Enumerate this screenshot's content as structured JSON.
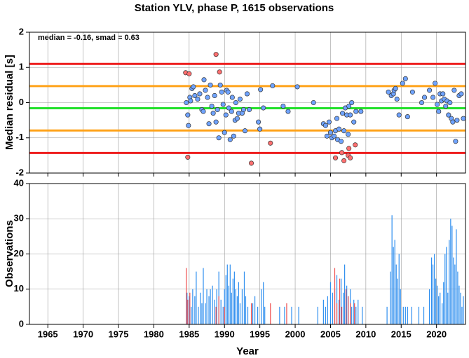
{
  "chart_data": [
    {
      "type": "scatter",
      "title": "Station YLV, phase P, 1615 observations",
      "ylabel": "Median residual [s]",
      "annotation": "median = -0.16, smad = 0.63",
      "xlim": [
        1962.4,
        2024.1
      ],
      "ylim": [
        -2,
        2
      ],
      "yticks": [
        -2,
        -1,
        0,
        1,
        2
      ],
      "grid": true,
      "hlines": [
        {
          "value": 1.1,
          "color": "#ee1c1c"
        },
        {
          "value": 0.47,
          "color": "#ffa31a"
        },
        {
          "value": -0.16,
          "color": "#22e02a"
        },
        {
          "value": -0.79,
          "color": "#ffa31a"
        },
        {
          "value": -1.43,
          "color": "#ee1c1c"
        }
      ],
      "series": [
        {
          "color": "#6fa3ff",
          "x": [
            1984.6,
            1984.8,
            1984.9,
            1985.1,
            1985.2,
            1985.4,
            1985.6,
            1985.8,
            1986.2,
            1986.5,
            1986.8,
            1987.0,
            1987.1,
            1987.3,
            1987.6,
            1987.8,
            1988.0,
            1988.2,
            1988.4,
            1988.6,
            1988.8,
            1989.0,
            1989.2,
            1989.4,
            1989.6,
            1989.8,
            1990.0,
            1990.2,
            1990.3,
            1990.5,
            1990.6,
            1990.8,
            1991.0,
            1991.1,
            1991.3,
            1991.5,
            1991.6,
            1991.8,
            1992.0,
            1992.2,
            1992.5,
            1992.7,
            1992.9,
            1993.2,
            1993.5,
            1994.8,
            1995.0,
            1995.1,
            1995.5,
            1996.8,
            1998.3,
            1999.0,
            2000.3,
            2002.6,
            2004.0,
            2004.3,
            2004.5,
            2004.8,
            2005.0,
            2005.2,
            2005.5,
            2005.7,
            2005.9,
            2006.0,
            2006.2,
            2006.5,
            2006.7,
            2006.9,
            2007.1,
            2007.3,
            2007.5,
            2007.6,
            2007.8,
            2008.0,
            2008.3,
            2008.6,
            2009.3,
            2013.2,
            2013.6,
            2013.9,
            2014.0,
            2014.2,
            2014.4,
            2014.7,
            2015.2,
            2015.6,
            2015.9,
            2016.6,
            2017.9,
            2018.3,
            2019.0,
            2019.5,
            2019.8,
            2020.1,
            2020.3,
            2020.5,
            2020.7,
            2020.9,
            2021.1,
            2021.3,
            2021.5,
            2021.7,
            2021.9,
            2022.1,
            2022.3,
            2022.5,
            2022.7,
            2022.9,
            2023.2,
            2023.5,
            2023.8
          ],
          "values": [
            0.0,
            -0.35,
            -0.65,
            0.15,
            0.05,
            0.4,
            0.45,
            0.2,
            0.1,
            0.25,
            -0.2,
            -0.25,
            0.65,
            0.35,
            0.15,
            -0.6,
            0.5,
            -0.1,
            -0.3,
            0.2,
            -0.55,
            -0.2,
            -1.0,
            0.5,
            0.3,
            -0.05,
            -0.85,
            -0.35,
            0.35,
            0.3,
            -0.15,
            -1.05,
            -0.25,
            0.15,
            -0.95,
            -0.5,
            0.0,
            -0.45,
            -0.3,
            0.1,
            -0.3,
            -0.2,
            -0.8,
            0.25,
            -0.2,
            -0.55,
            -0.75,
            0.37,
            -0.15,
            0.48,
            -0.1,
            -0.25,
            0.45,
            0.0,
            -0.6,
            -0.65,
            -0.95,
            -0.55,
            -0.85,
            -1.0,
            -0.95,
            -0.8,
            -0.45,
            -1.05,
            -0.75,
            -1.1,
            -0.3,
            -0.8,
            -0.15,
            -0.35,
            -0.9,
            -0.1,
            -0.35,
            0.0,
            -0.55,
            -0.25,
            -0.25,
            0.3,
            0.2,
            0.25,
            0.35,
            0.4,
            0.1,
            -0.35,
            0.55,
            0.68,
            -0.4,
            0.3,
            0.0,
            0.15,
            0.35,
            0.15,
            0.55,
            -0.05,
            -0.25,
            0.25,
            0.05,
            0.25,
            0.1,
            -0.1,
            0.05,
            -0.35,
            0.0,
            -0.45,
            -0.55,
            0.35,
            -1.1,
            -0.5,
            0.2,
            0.25,
            -0.45
          ]
        },
        {
          "color": "#ff6f6f",
          "x": [
            1984.5,
            1985.0,
            1984.8,
            1988.8,
            1989.3,
            1993.8,
            1996.5,
            2005.7,
            2006.6,
            2006.9,
            2007.5,
            2007.6,
            2007.8,
            2008.5
          ],
          "values": [
            0.85,
            0.82,
            -1.55,
            1.37,
            0.87,
            -1.72,
            -1.15,
            -1.57,
            -1.42,
            -1.65,
            -1.5,
            -1.3,
            -1.57,
            -1.2
          ]
        }
      ]
    },
    {
      "type": "bar",
      "xlabel": "Year",
      "ylabel": "Observations",
      "xlim": [
        1962.4,
        2024.1
      ],
      "ylim": [
        0,
        40
      ],
      "yticks": [
        0,
        10,
        20,
        30,
        40
      ],
      "xticks": [
        1965,
        1970,
        1975,
        1980,
        1985,
        1990,
        1995,
        2000,
        2005,
        2010,
        2015,
        2020
      ],
      "grid": true,
      "series": [
        {
          "color": "#2f8fef",
          "x": [
            1984.7,
            1985.0,
            1985.3,
            1985.5,
            1985.8,
            1986.0,
            1986.3,
            1986.6,
            1986.8,
            1987.0,
            1987.3,
            1987.5,
            1987.8,
            1988.0,
            1988.3,
            1988.6,
            1988.9,
            1989.2,
            1989.5,
            1989.8,
            1990.0,
            1990.2,
            1990.4,
            1990.6,
            1990.8,
            1991.0,
            1991.2,
            1991.4,
            1991.6,
            1991.8,
            1992.0,
            1992.2,
            1992.5,
            1992.8,
            1993.0,
            1993.3,
            1994.0,
            1994.3,
            1994.7,
            1995.2,
            1995.5,
            1995.7,
            1997.8,
            1998.5,
            1999.5,
            2000.5,
            2003.2,
            2004.0,
            2004.3,
            2004.6,
            2005.0,
            2005.3,
            2005.6,
            2005.9,
            2006.2,
            2006.5,
            2006.8,
            2007.0,
            2007.3,
            2007.5,
            2007.8,
            2008.0,
            2008.3,
            2008.6,
            2008.9,
            2009.5,
            2013.0,
            2013.5,
            2013.7,
            2013.9,
            2014.1,
            2014.3,
            2014.5,
            2014.7,
            2014.9,
            2015.3,
            2015.6,
            2015.9,
            2016.5,
            2017.5,
            2018.2,
            2019.0,
            2019.3,
            2019.5,
            2019.7,
            2019.9,
            2020.1,
            2020.3,
            2020.5,
            2020.8,
            2021.0,
            2021.2,
            2021.4,
            2021.6,
            2021.8,
            2022.0,
            2022.2,
            2022.4,
            2022.6,
            2022.8,
            2023.0,
            2023.2,
            2023.4,
            2023.6,
            2023.8
          ],
          "values": [
            9,
            8,
            5,
            10,
            8,
            15,
            5,
            9,
            6,
            16,
            6,
            10,
            8,
            10,
            11,
            7,
            10,
            15,
            7,
            5,
            10,
            14,
            17,
            11,
            17,
            9,
            13,
            15,
            10,
            8,
            12,
            6,
            10,
            15,
            8,
            5,
            6,
            8,
            5,
            10,
            12,
            5,
            5,
            5,
            5,
            5,
            5,
            7,
            5,
            8,
            12,
            9,
            10,
            14,
            7,
            13,
            9,
            17,
            11,
            8,
            10,
            5,
            7,
            5,
            7,
            5,
            5,
            15,
            31,
            22,
            24,
            17,
            13,
            20,
            10,
            5,
            5,
            5,
            5,
            5,
            5,
            10,
            19,
            17,
            20,
            13,
            11,
            8,
            9,
            6,
            12,
            20,
            22,
            9,
            24,
            30,
            28,
            19,
            17,
            27,
            15,
            11,
            9,
            5,
            8
          ]
        },
        {
          "color": "#ef4f4f",
          "x": [
            1984.6,
            1984.8,
            1985.1,
            1988.8,
            1989.2,
            1990.0,
            1993.8,
            1996.5,
            1998.8,
            2005.6,
            2005.9,
            2006.3,
            2006.6,
            2007.2,
            2007.5,
            2007.8,
            2008.4
          ],
          "values": [
            16,
            7,
            9,
            5,
            8,
            5,
            6,
            6,
            6,
            16,
            6,
            13,
            5,
            10,
            8,
            6,
            6
          ]
        }
      ]
    }
  ]
}
